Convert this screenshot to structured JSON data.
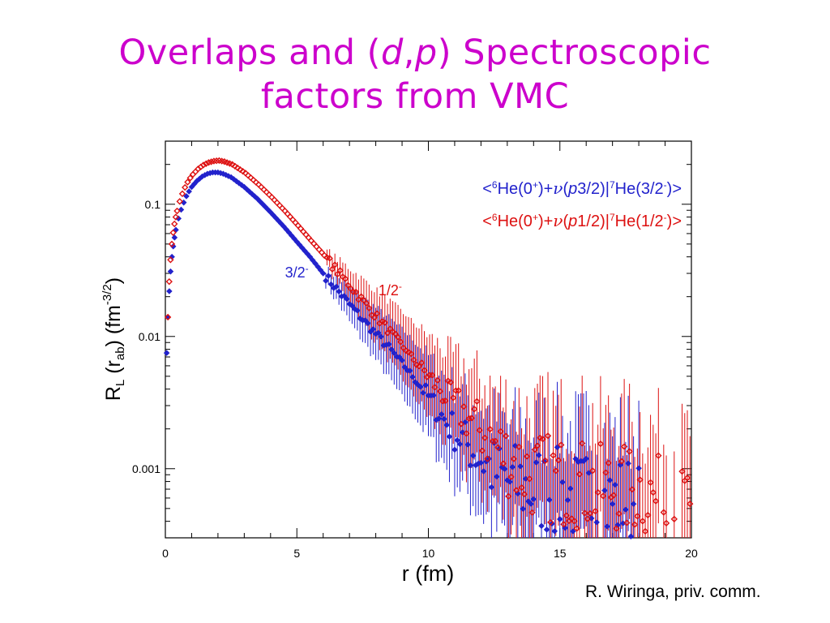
{
  "slide": {
    "title_part1": "Overlaps and (",
    "title_d": "d",
    "title_comma": ",",
    "title_p": "p",
    "title_part2": ") Spectroscopic",
    "title_line2": "factors from VMC",
    "credit": "R. Wiringa, priv. comm."
  },
  "colors": {
    "title": "#cc00cc",
    "series_blue": "#2222cc",
    "series_red": "#dd1111"
  },
  "chart_data": {
    "type": "scatter",
    "x_scale": "linear",
    "y_scale": "log",
    "xlim": [
      0,
      20
    ],
    "ylim": [
      0.0003,
      0.3
    ],
    "x_ticks": [
      0,
      5,
      10,
      15,
      20
    ],
    "x_tick_labels": [
      "0",
      "5",
      "10",
      "15",
      "20"
    ],
    "y_ticks": [
      0.001,
      0.01,
      0.1
    ],
    "y_tick_labels": [
      "0.001",
      "0.01",
      "0.1"
    ],
    "xlabel": "r (fm)",
    "ylabel_parts": {
      "R": "R",
      "L": "L",
      "open": " (r",
      "ab": "ab",
      "close": ") (fm",
      "exp": "-3/2",
      "end": ")"
    },
    "grid": false,
    "legend": {
      "placement": "top-right",
      "entries": [
        {
          "prefix": "<",
          "a6": "6",
          "he0": "He(0",
          "plus": "+",
          "mid": ")+",
          "nu": "ν",
          "paren": "(",
          "p": "p",
          "j": "3/2)|",
          "a7": "7",
          "he": "He(3/2",
          "minus": "-",
          "end": ")>"
        },
        {
          "prefix": "<",
          "a6": "6",
          "he0": "He(0",
          "plus": "+",
          "mid": ")+",
          "nu": "ν",
          "paren": "(",
          "p": "p",
          "j": "1/2)|",
          "a7": "7",
          "he": "He(1/2",
          "minus": "-",
          "end": ")>"
        }
      ]
    },
    "annotations": [
      {
        "text": "3/2",
        "sup": "-",
        "x": 4.55,
        "y": 0.028,
        "series": 0
      },
      {
        "text": "1/2",
        "sup": "-",
        "x": 8.1,
        "y": 0.0205,
        "series": 1
      }
    ],
    "series": [
      {
        "marker": "filled-diamond",
        "x": [
          0.05,
          0.1,
          0.15,
          0.2,
          0.25,
          0.3,
          0.35,
          0.4,
          0.5,
          0.6,
          0.7,
          0.8,
          0.9,
          1.0,
          1.2,
          1.4,
          1.6,
          1.8,
          2.0,
          2.2,
          2.5,
          3.0,
          3.5,
          4.0,
          4.5,
          5.0,
          5.5,
          6.0,
          6.5,
          7.0,
          7.5,
          8.0,
          8.5,
          9.0,
          9.5,
          10.0,
          10.5,
          11.0,
          11.5,
          12.0,
          12.5,
          13.0,
          13.5,
          14.0,
          14.5,
          15.0,
          15.5,
          16.0,
          16.5,
          17.0,
          17.5,
          18.0
        ],
        "y": [
          0.0075,
          0.014,
          0.022,
          0.031,
          0.04,
          0.048,
          0.056,
          0.064,
          0.078,
          0.091,
          0.103,
          0.115,
          0.125,
          0.135,
          0.15,
          0.162,
          0.17,
          0.174,
          0.174,
          0.17,
          0.16,
          0.135,
          0.11,
          0.087,
          0.068,
          0.052,
          0.04,
          0.03,
          0.023,
          0.0175,
          0.0135,
          0.0105,
          0.0082,
          0.0062,
          0.0048,
          0.0035,
          0.0025,
          0.0019,
          0.0015,
          0.0012,
          0.00095,
          0.0008,
          0.00075,
          0.0007,
          0.00068,
          0.00065,
          0.0006,
          0.00062,
          0.00058,
          0.00055,
          0.0006,
          0.00052
        ]
      },
      {
        "marker": "open-diamond",
        "x": [
          0.05,
          0.1,
          0.15,
          0.2,
          0.25,
          0.3,
          0.35,
          0.4,
          0.5,
          0.6,
          0.7,
          0.8,
          0.9,
          1.0,
          1.2,
          1.4,
          1.6,
          1.8,
          2.0,
          2.2,
          2.5,
          3.0,
          3.5,
          4.0,
          4.5,
          5.0,
          5.5,
          6.0,
          6.5,
          7.0,
          7.5,
          8.0,
          8.5,
          9.0,
          9.5,
          10.0,
          10.5,
          11.0,
          11.5,
          12.0,
          12.5,
          13.0,
          13.5,
          14.0,
          14.5,
          15.0,
          15.5,
          16.0,
          16.5,
          17.0,
          17.5,
          18.0,
          19.5,
          19.9
        ],
        "y": [
          0.014,
          0.026,
          0.038,
          0.05,
          0.061,
          0.071,
          0.08,
          0.089,
          0.105,
          0.12,
          0.134,
          0.147,
          0.158,
          0.168,
          0.185,
          0.198,
          0.207,
          0.212,
          0.214,
          0.21,
          0.2,
          0.172,
          0.141,
          0.113,
          0.089,
          0.069,
          0.053,
          0.041,
          0.031,
          0.024,
          0.0182,
          0.014,
          0.0108,
          0.0083,
          0.0064,
          0.0049,
          0.0038,
          0.003,
          0.0024,
          0.0019,
          0.0015,
          0.0012,
          0.001,
          0.0009,
          0.00085,
          0.0008,
          0.00078,
          0.00075,
          0.0007,
          0.00072,
          0.00068,
          0.0007,
          0.00045,
          0.0006
        ]
      }
    ]
  }
}
